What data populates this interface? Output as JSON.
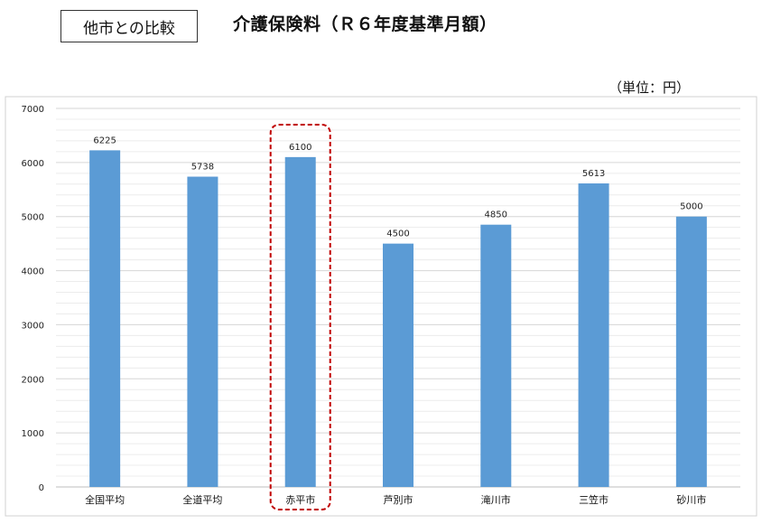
{
  "header": {
    "tag": "他市との比較",
    "title": "介護保険料（Ｒ６年度基準月額）",
    "unit": "（単位：円）"
  },
  "chart_data": {
    "type": "bar",
    "categories": [
      "全国平均",
      "全道平均",
      "赤平市",
      "芦別市",
      "滝川市",
      "三笠市",
      "砂川市"
    ],
    "values": [
      6225,
      5738,
      6100,
      4500,
      4850,
      5613,
      5000
    ],
    "ylim": [
      0,
      7000
    ],
    "yticks": [
      0,
      1000,
      2000,
      3000,
      4000,
      5000,
      6000,
      7000
    ],
    "highlight": "赤平市",
    "bar_color": "#5b9bd5",
    "highlight_border_color": "#c00000",
    "grid": true,
    "legend": false
  }
}
